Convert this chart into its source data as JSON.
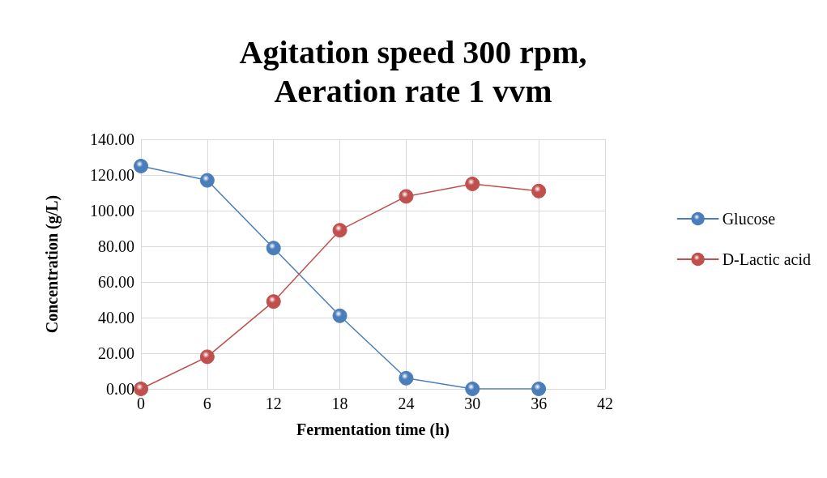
{
  "chart_data": {
    "type": "line",
    "title": "Agitation speed 300 rpm,\nAeration rate 1 vvm",
    "xlabel": "Fermentation time (h)",
    "ylabel": "Concentration (g/L)",
    "x": [
      0,
      6,
      12,
      18,
      24,
      30,
      36
    ],
    "series": [
      {
        "name": "Glucose",
        "color": "#4a7ebb",
        "values": [
          125,
          117,
          79,
          41,
          6,
          0,
          0
        ]
      },
      {
        "name": "D-Lactic acid",
        "color": "#c0504d",
        "values": [
          0,
          18,
          49,
          89,
          108,
          115,
          111
        ]
      }
    ],
    "xlim": [
      0,
      42
    ],
    "xticks": [
      0,
      6,
      12,
      18,
      24,
      30,
      36,
      42
    ],
    "ylim": [
      0,
      140
    ],
    "yticks": [
      {
        "value": 0,
        "label": "0.00"
      },
      {
        "value": 20,
        "label": "20.00"
      },
      {
        "value": 40,
        "label": "40.00"
      },
      {
        "value": 60,
        "label": "60.00"
      },
      {
        "value": 80,
        "label": "80.00"
      },
      {
        "value": 100,
        "label": "100.00"
      },
      {
        "value": 120,
        "label": "120.00"
      },
      {
        "value": 140,
        "label": "140.00"
      }
    ],
    "grid": true,
    "legend": "right",
    "marker": "circle",
    "line_style": "solid"
  }
}
